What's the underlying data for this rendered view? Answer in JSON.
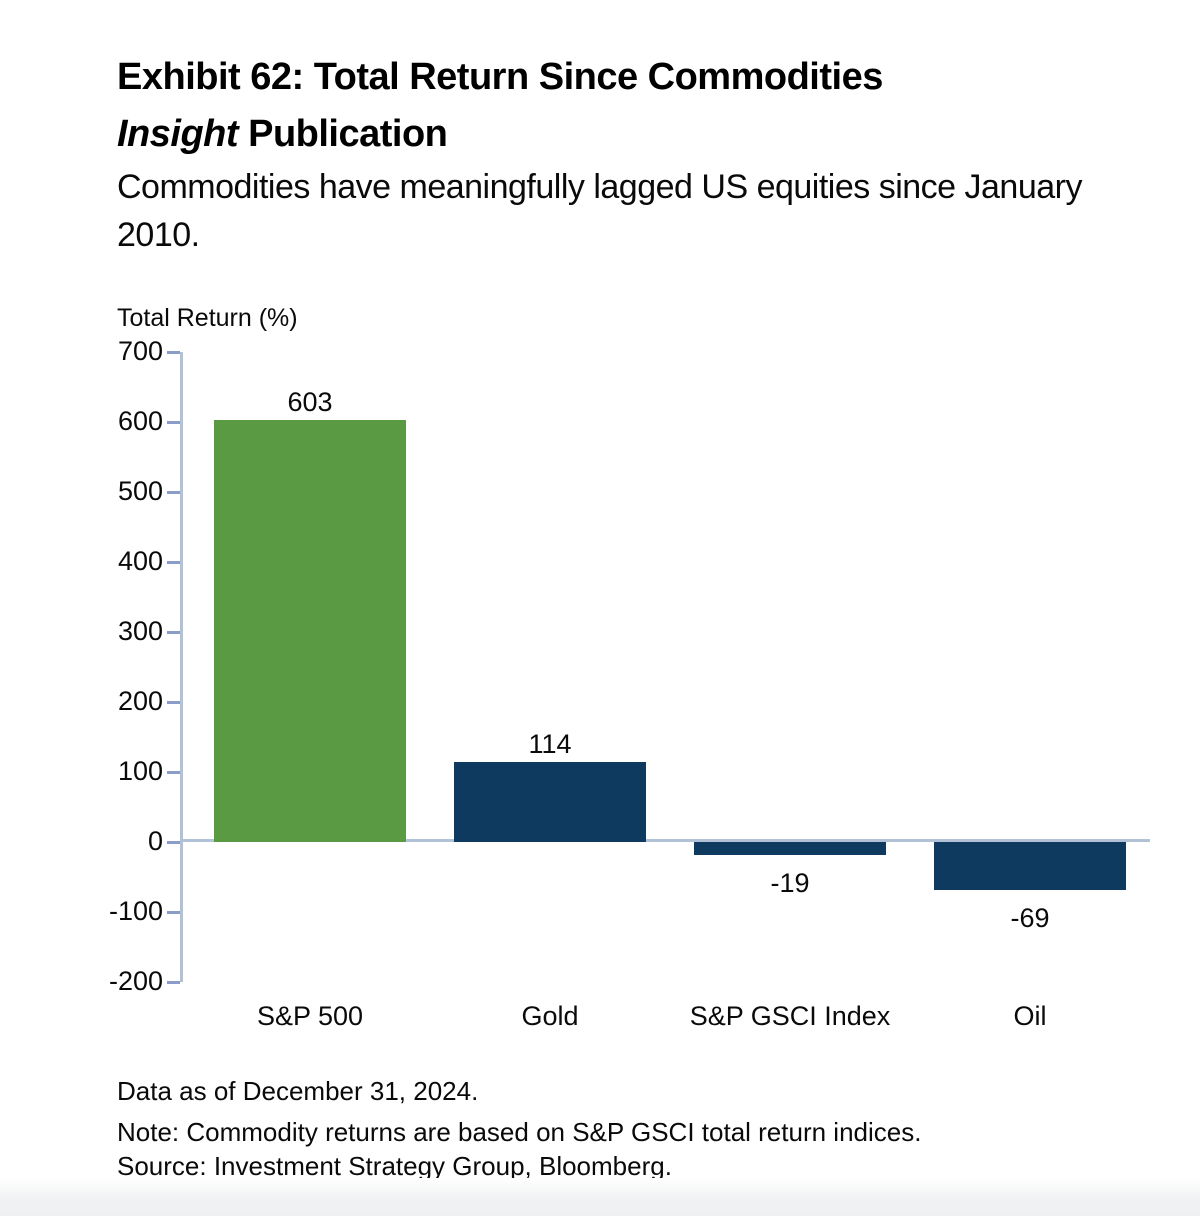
{
  "header": {
    "title_line1": "Exhibit 62: Total Return Since Commodities",
    "title_line2_italic": "Insight",
    "title_line2_rest": "Publication",
    "subtitle": "Commodities have meaningfully lagged US equities since January 2010."
  },
  "chart_data": {
    "type": "bar",
    "title": "Exhibit 62: Total Return Since Commodities Insight Publication",
    "subtitle": "Commodities have meaningfully lagged US equities since January 2010.",
    "ylabel": "Total Return (%)",
    "xlabel": "",
    "categories": [
      "S&P 500",
      "Gold",
      "S&P GSCI Index",
      "Oil"
    ],
    "values": [
      603,
      114,
      -19,
      -69
    ],
    "value_labels": [
      "603",
      "114",
      "-19",
      "-69"
    ],
    "bar_colors": [
      "#5a9a43",
      "#0f3a5f",
      "#0f3a5f",
      "#0f3a5f"
    ],
    "ylim": [
      -200,
      700
    ],
    "yticks": [
      700,
      600,
      500,
      400,
      300,
      200,
      100,
      0,
      -100,
      -200
    ],
    "grid": false,
    "legend": "none"
  },
  "colors": {
    "green_bar": "#5a9a43",
    "navy_bar": "#0f3a5f",
    "axis_line": "#b2c2d6",
    "tick_mark": "#8a9cc8"
  },
  "footer": {
    "line1": "Data as of December 31, 2024.",
    "line2": "Note: Commodity returns are based on S&P GSCI total return indices.",
    "line3": "Source: Investment Strategy Group, Bloomberg."
  }
}
